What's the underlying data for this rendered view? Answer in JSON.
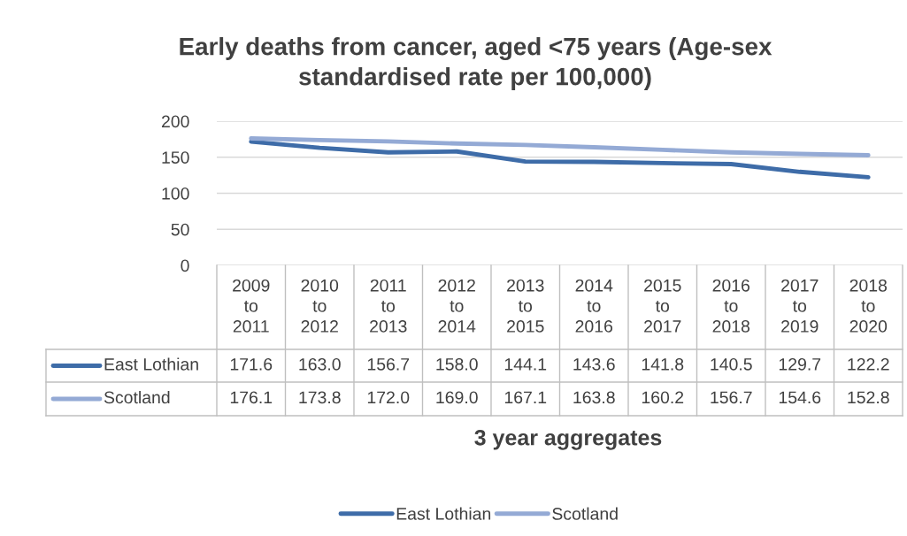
{
  "chart_data": {
    "type": "line",
    "title": "Early deaths from cancer, aged <75 years (Age-sex standardised rate per 100,000)",
    "xlabel": "3 year aggregates",
    "categories": [
      "2009\nto\n2011",
      "2010\nto\n2012",
      "2011\nto\n2013",
      "2012\nto\n2014",
      "2013\nto\n2015",
      "2014\nto\n2016",
      "2015\nto\n2017",
      "2016\nto\n2018",
      "2017\nto\n2019",
      "2018\nto\n2020"
    ],
    "series": [
      {
        "name": "East Lothian",
        "color": "#3e6ca8",
        "values": [
          171.6,
          163.0,
          156.7,
          158.0,
          144.1,
          143.6,
          141.8,
          140.5,
          129.7,
          122.2
        ],
        "value_labels": [
          "171.6",
          "163.0",
          "156.7",
          "158.0",
          "144.1",
          "143.6",
          "141.8",
          "140.5",
          "129.7",
          "122.2"
        ]
      },
      {
        "name": "Scotland",
        "color": "#94aad5",
        "values": [
          176.1,
          173.8,
          172.0,
          169.0,
          167.1,
          163.8,
          160.2,
          156.7,
          154.6,
          152.8
        ],
        "value_labels": [
          "176.1",
          "173.8",
          "172.0",
          "169.0",
          "167.1",
          "163.8",
          "160.2",
          "156.7",
          "154.6",
          "152.8"
        ]
      }
    ],
    "ylim": [
      0,
      200
    ],
    "yticks": [
      0,
      50,
      100,
      150,
      200
    ],
    "grid": "y",
    "legend": "bottom",
    "marker": "none",
    "line_style": "solid"
  }
}
